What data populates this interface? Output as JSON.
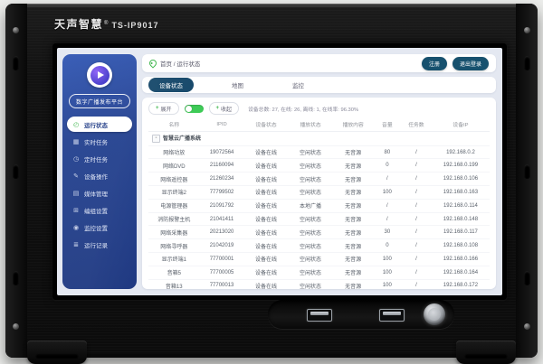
{
  "colors": {
    "sidebar_blue": "#22408f",
    "tab_active": "#17496b",
    "accent_green": "#3ecb57",
    "status_link": "#5a6fd6",
    "button_teal": "#17516e"
  },
  "device": {
    "brand": "天声智慧",
    "trademark": "®",
    "model": "TS-IP9017"
  },
  "screen": {
    "sidebar": {
      "platform_label": "数字广播发布平台",
      "items": [
        {
          "label": "运行状态",
          "icon": "◴",
          "active": true
        },
        {
          "label": "实时任务",
          "icon": "▦",
          "active": false
        },
        {
          "label": "定时任务",
          "icon": "◷",
          "active": false
        },
        {
          "label": "设备操作",
          "icon": "✎",
          "active": false
        },
        {
          "label": "媒体管理",
          "icon": "▤",
          "active": false
        },
        {
          "label": "编组设置",
          "icon": "⊞",
          "active": false
        },
        {
          "label": "监控设置",
          "icon": "◉",
          "active": false
        },
        {
          "label": "运行记录",
          "icon": "≣",
          "active": false
        }
      ]
    },
    "header": {
      "breadcrumb": "首页 / 运行状态",
      "buttons": [
        {
          "label": "注册"
        },
        {
          "label": "退出登录"
        }
      ]
    },
    "tabs": [
      {
        "label": "设备状态",
        "active": true
      },
      {
        "label": "地图",
        "active": false
      },
      {
        "label": "监控",
        "active": false
      }
    ],
    "toolbar": {
      "plus_glyph": "+",
      "expand_label": "展开",
      "collapse_label": "收起",
      "toggle_on": true,
      "summary": "设备总数: 27, 在线: 26, 离线: 1, 在线率: 96.30%"
    },
    "table": {
      "group_expander": "-",
      "group_label": "智慧云广播系统",
      "headers": [
        "名称",
        "IPID",
        "设备状态",
        "播放状态",
        "播放内容",
        "音量",
        "任务数",
        "设备IP"
      ],
      "rows": [
        [
          "网络功放",
          "19072564",
          "设备在线",
          "空闲状态",
          "无音源",
          "80",
          "/",
          "192.168.0.2"
        ],
        [
          "网络DVD",
          "21160094",
          "设备在线",
          "空闲状态",
          "无音源",
          "0",
          "/",
          "192.168.0.199"
        ],
        [
          "网络遥控器",
          "21260234",
          "设备在线",
          "空闲状态",
          "无音源",
          "/",
          "/",
          "192.168.0.106"
        ],
        [
          "显示终端2",
          "77799502",
          "设备在线",
          "空闲状态",
          "无音源",
          "100",
          "/",
          "192.168.0.163"
        ],
        [
          "电源管理器",
          "21091792",
          "设备在线",
          "本地广播",
          "无音源",
          "/",
          "/",
          "192.168.0.114"
        ],
        [
          "消防报警主机",
          "21041411",
          "设备在线",
          "空闲状态",
          "无音源",
          "/",
          "/",
          "192.168.0.148"
        ],
        [
          "网络采集器",
          "20213020",
          "设备在线",
          "空闲状态",
          "无音源",
          "30",
          "/",
          "192.168.0.117"
        ],
        [
          "网络寻呼器",
          "21042019",
          "设备在线",
          "空闲状态",
          "无音源",
          "0",
          "/",
          "192.168.0.108"
        ],
        [
          "显示终端1",
          "77700001",
          "设备在线",
          "空闲状态",
          "无音源",
          "100",
          "/",
          "192.168.0.166"
        ],
        [
          "音箱5",
          "77700005",
          "设备在线",
          "空闲状态",
          "无音源",
          "100",
          "/",
          "192.168.0.164"
        ],
        [
          "音箱13",
          "77700013",
          "设备在线",
          "空闲状态",
          "无音源",
          "100",
          "/",
          "192.168.0.172"
        ],
        [
          "音箱10",
          "77700010",
          "设备在线",
          "空闲状态",
          "无音源",
          "100",
          "/",
          "192.168.0.168"
        ]
      ]
    }
  }
}
